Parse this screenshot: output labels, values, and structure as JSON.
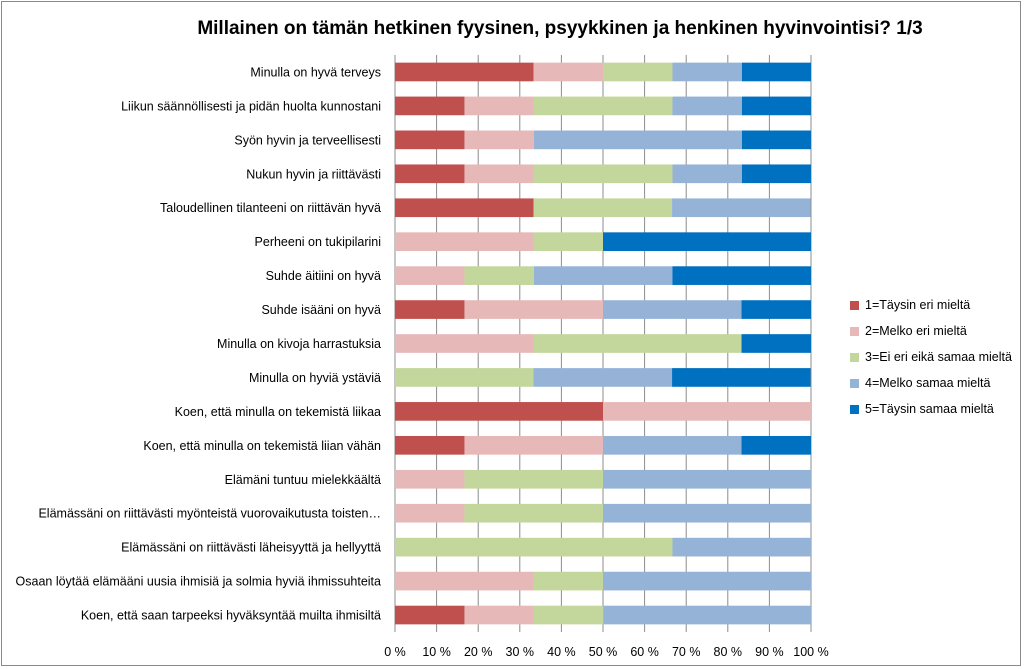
{
  "chart_data": {
    "type": "bar",
    "orientation": "horizontal",
    "stacked": "percent",
    "title": "Millainen on tämän hetkinen fyysinen, psyykkinen ja henkinen hyvinvointisi? 1/3",
    "categories": [
      "Minulla on hyvä terveys",
      "Liikun säännöllisesti ja pidän huolta kunnostani",
      "Syön hyvin ja terveellisesti",
      "Nukun hyvin ja riittävästi",
      "Taloudellinen tilanteeni on riittävän hyvä",
      "Perheeni on tukipilarini",
      "Suhde äitiini on hyvä",
      "Suhde isääni on hyvä",
      "Minulla on kivoja harrastuksia",
      "Minulla on hyviä ystäviä",
      "Koen, että minulla on tekemistä liikaa",
      "Koen, että minulla on tekemistä liian vähän",
      "Elämäni tuntuu mielekkäältä",
      "Elämässäni on riittävästi myönteistä vuorovaikutusta toisten…",
      "Elämässäni on riittävästi läheisyyttä ja hellyyttä",
      "Osaan löytää elämääni uusia ihmisiä ja solmia hyviä ihmissuhteita",
      "Koen, että saan tarpeeksi hyväksyntää muilta ihmisiltä"
    ],
    "series": [
      {
        "name": "1=Täysin eri mieltä",
        "color": "#C0504D",
        "values": [
          33.3,
          16.7,
          16.7,
          16.7,
          33.3,
          0,
          0,
          16.7,
          0,
          0,
          50,
          16.7,
          0,
          0,
          0,
          0,
          16.7
        ]
      },
      {
        "name": "2=Melko eri mieltä",
        "color": "#E6B9B8",
        "values": [
          16.7,
          16.7,
          16.7,
          16.7,
          0,
          33.3,
          16.7,
          33.3,
          33.3,
          0,
          50,
          33.3,
          16.7,
          16.7,
          0,
          33.3,
          16.7
        ]
      },
      {
        "name": "3=Ei eri eikä samaa mieltä",
        "color": "#C3D69B",
        "values": [
          16.7,
          33.3,
          0,
          33.3,
          33.3,
          16.7,
          16.7,
          0,
          50,
          33.3,
          0,
          0,
          33.3,
          33.3,
          66.7,
          16.7,
          16.7
        ]
      },
      {
        "name": "4=Melko samaa mieltä",
        "color": "#95B3D7",
        "values": [
          16.7,
          16.7,
          50,
          16.7,
          33.3,
          0,
          33.3,
          33.3,
          0,
          33.3,
          0,
          33.3,
          50,
          50,
          33.3,
          50,
          50
        ]
      },
      {
        "name": "5=Täysin samaa mieltä",
        "color": "#0070C0",
        "values": [
          16.7,
          16.7,
          16.7,
          16.7,
          0,
          50,
          33.3,
          16.7,
          16.7,
          33.3,
          0,
          16.7,
          0,
          0,
          0,
          0,
          0
        ]
      }
    ],
    "xlim": [
      0,
      100
    ],
    "xticks": [
      "0 %",
      "10 %",
      "20 %",
      "30 %",
      "40 %",
      "50 %",
      "60 %",
      "70 %",
      "80 %",
      "90 %",
      "100 %"
    ],
    "grid": true,
    "legend": "right"
  }
}
